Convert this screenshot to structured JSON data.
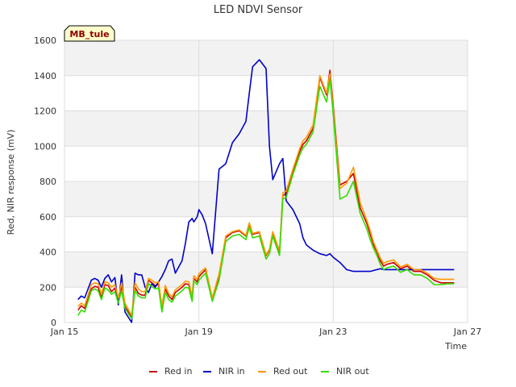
{
  "chart_data": {
    "type": "line",
    "title": "LED NDVI Sensor",
    "xlabel": "Time",
    "ylabel": "Red, NIR response (mV)",
    "badge": "MB_tule",
    "x_unit": "days since Jan 15",
    "xlim": [
      0,
      12
    ],
    "ylim": [
      0,
      1600
    ],
    "yticks": [
      0,
      200,
      400,
      600,
      800,
      1000,
      1200,
      1400,
      1600
    ],
    "xticks": [
      {
        "value": 0,
        "label": "Jan 15"
      },
      {
        "value": 4,
        "label": "Jan 19"
      },
      {
        "value": 8,
        "label": "Jan 23"
      },
      {
        "value": 12,
        "label": "Jan 27"
      }
    ],
    "grid": true,
    "legend_position": "bottom",
    "x": [
      0.4,
      0.5,
      0.6,
      0.8,
      0.9,
      1.0,
      1.1,
      1.2,
      1.3,
      1.4,
      1.5,
      1.6,
      1.7,
      1.8,
      2.0,
      2.1,
      2.2,
      2.3,
      2.4,
      2.5,
      2.6,
      2.7,
      2.8,
      2.9,
      3.0,
      3.1,
      3.2,
      3.3,
      3.5,
      3.6,
      3.7,
      3.8,
      3.85,
      3.95,
      4.0,
      4.1,
      4.2,
      4.4,
      4.6,
      4.8,
      5.0,
      5.2,
      5.4,
      5.5,
      5.6,
      5.8,
      6.0,
      6.1,
      6.2,
      6.4,
      6.5,
      6.6,
      6.8,
      7.0,
      7.1,
      7.2,
      7.4,
      7.6,
      7.8,
      7.9,
      8.0,
      8.2,
      8.4,
      8.6,
      8.8,
      9.0,
      9.1,
      9.2,
      9.3,
      9.4,
      9.5,
      9.6,
      9.8,
      10.0,
      10.2,
      10.4,
      10.6,
      10.8,
      11.0,
      11.2,
      11.4,
      11.6
    ],
    "series": [
      {
        "name": "Red in",
        "color": "#cc0000",
        "values": [
          70,
          95,
          80,
          190,
          205,
          200,
          140,
          215,
          210,
          175,
          195,
          120,
          205,
          90,
          30,
          200,
          165,
          155,
          155,
          240,
          225,
          210,
          215,
          80,
          190,
          150,
          130,
          170,
          200,
          220,
          215,
          135,
          250,
          230,
          260,
          280,
          300,
          130,
          260,
          480,
          510,
          520,
          490,
          560,
          500,
          510,
          380,
          410,
          510,
          400,
          720,
          730,
          860,
          970,
          1010,
          1030,
          1100,
          1390,
          1290,
          1430,
          1230,
          780,
          800,
          845,
          650,
          560,
          500,
          440,
          400,
          350,
          320,
          330,
          340,
          305,
          320,
          290,
          290,
          270,
          240,
          225,
          225,
          225
        ]
      },
      {
        "name": "NIR in",
        "color": "#0000cc",
        "values": [
          130,
          150,
          140,
          240,
          250,
          240,
          200,
          250,
          270,
          230,
          255,
          100,
          270,
          60,
          0,
          280,
          270,
          270,
          200,
          170,
          220,
          200,
          230,
          260,
          300,
          350,
          360,
          280,
          350,
          450,
          570,
          590,
          570,
          600,
          640,
          610,
          560,
          390,
          870,
          900,
          1020,
          1070,
          1140,
          1300,
          1450,
          1490,
          1440,
          1000,
          810,
          900,
          930,
          690,
          640,
          560,
          480,
          440,
          410,
          390,
          380,
          390,
          370,
          340,
          300,
          290,
          290,
          290,
          290,
          295,
          300,
          305,
          300,
          300,
          300,
          300,
          300,
          300,
          300,
          300,
          300,
          300,
          300,
          300
        ]
      },
      {
        "name": "Red out",
        "color": "#ff9900",
        "values": [
          90,
          110,
          95,
          215,
          225,
          220,
          160,
          230,
          225,
          200,
          215,
          140,
          225,
          110,
          40,
          225,
          190,
          175,
          175,
          250,
          240,
          225,
          230,
          95,
          210,
          165,
          145,
          185,
          215,
          235,
          230,
          150,
          265,
          245,
          275,
          295,
          310,
          140,
          275,
          490,
          515,
          525,
          495,
          565,
          505,
          515,
          385,
          415,
          515,
          405,
          735,
          745,
          870,
          985,
          1030,
          1050,
          1120,
          1400,
          1300,
          1410,
          1210,
          760,
          790,
          880,
          680,
          580,
          520,
          455,
          410,
          365,
          335,
          345,
          355,
          315,
          330,
          300,
          300,
          280,
          250,
          245,
          245,
          245
        ]
      },
      {
        "name": "NIR out",
        "color": "#33dd00",
        "values": [
          40,
          70,
          60,
          180,
          190,
          180,
          130,
          195,
          185,
          160,
          175,
          110,
          180,
          80,
          20,
          180,
          150,
          140,
          140,
          220,
          205,
          190,
          195,
          60,
          170,
          130,
          115,
          150,
          180,
          200,
          195,
          120,
          235,
          215,
          240,
          260,
          280,
          120,
          240,
          460,
          490,
          500,
          470,
          540,
          480,
          490,
          360,
          390,
          490,
          380,
          700,
          710,
          840,
          950,
          990,
          1010,
          1080,
          1340,
          1250,
          1380,
          1180,
          700,
          720,
          800,
          620,
          530,
          470,
          420,
          380,
          330,
          300,
          310,
          320,
          285,
          300,
          270,
          270,
          250,
          215,
          215,
          220,
          220
        ]
      }
    ]
  }
}
